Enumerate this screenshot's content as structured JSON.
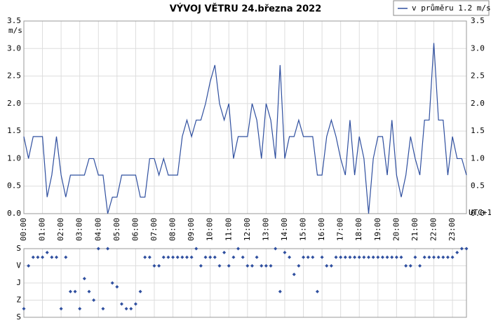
{
  "chart_data": [
    {
      "type": "line",
      "title": "VÝVOJ VĚTRU  24.března 2022",
      "y_unit": "m/s",
      "timezone": "UTC+1",
      "grid": true,
      "legend": "top-right",
      "x": [
        0,
        0.25,
        0.5,
        0.75,
        1,
        1.25,
        1.5,
        1.75,
        2,
        2.25,
        2.5,
        2.75,
        3,
        3.25,
        3.5,
        3.75,
        4,
        4.25,
        4.5,
        4.75,
        5,
        5.25,
        5.5,
        5.75,
        6,
        6.25,
        6.5,
        6.75,
        7,
        7.25,
        7.5,
        7.75,
        8,
        8.25,
        8.5,
        8.75,
        9,
        9.25,
        9.5,
        9.75,
        10,
        10.25,
        10.5,
        10.75,
        11,
        11.25,
        11.5,
        11.75,
        12,
        12.25,
        12.5,
        12.75,
        13,
        13.25,
        13.5,
        13.75,
        14,
        14.25,
        14.5,
        14.75,
        15,
        15.25,
        15.5,
        15.75,
        16,
        16.25,
        16.5,
        16.75,
        17,
        17.25,
        17.5,
        17.75,
        18,
        18.25,
        18.5,
        18.75,
        19,
        19.25,
        19.5,
        19.75,
        20,
        20.25,
        20.5,
        20.75,
        21,
        21.25,
        21.5,
        21.75,
        22,
        22.25,
        22.5,
        22.75,
        23,
        23.25,
        23.5,
        23.75
      ],
      "series": [
        {
          "name": "v průměru 1.2 m/s",
          "color": "#2f4f9f",
          "values": [
            1.4,
            1.0,
            1.4,
            1.4,
            1.4,
            0.3,
            0.7,
            1.4,
            0.7,
            0.3,
            0.7,
            0.7,
            0.7,
            0.7,
            1.0,
            1.0,
            0.7,
            0.7,
            0.0,
            0.3,
            0.3,
            0.7,
            0.7,
            0.7,
            0.7,
            0.3,
            0.3,
            1.0,
            1.0,
            0.7,
            1.0,
            0.7,
            0.7,
            0.7,
            1.4,
            1.7,
            1.4,
            1.7,
            1.7,
            2.0,
            2.4,
            2.7,
            2.0,
            1.7,
            2.0,
            1.0,
            1.4,
            1.4,
            1.4,
            2.0,
            1.7,
            1.0,
            2.0,
            1.7,
            1.0,
            2.7,
            1.0,
            1.4,
            1.4,
            1.7,
            1.4,
            1.4,
            1.4,
            0.7,
            0.7,
            1.4,
            1.7,
            1.4,
            1.0,
            0.7,
            1.7,
            0.7,
            1.4,
            1.0,
            0.0,
            1.0,
            1.4,
            1.4,
            0.7,
            1.7,
            0.7,
            0.3,
            0.7,
            1.4,
            1.0,
            0.7,
            1.7,
            1.7,
            3.1,
            1.7,
            1.7,
            0.7,
            1.4,
            1.0,
            1.0,
            0.7
          ]
        }
      ],
      "xlim": [
        0,
        23.75
      ],
      "xticks": [
        {
          "value": 0,
          "label": "00:00"
        },
        {
          "value": 1,
          "label": "01:00"
        },
        {
          "value": 2,
          "label": "02:00"
        },
        {
          "value": 3,
          "label": "03:00"
        },
        {
          "value": 4,
          "label": "04:00"
        },
        {
          "value": 5,
          "label": "05:00"
        },
        {
          "value": 6,
          "label": "06:00"
        },
        {
          "value": 7,
          "label": "07:00"
        },
        {
          "value": 8,
          "label": "08:00"
        },
        {
          "value": 9,
          "label": "09:00"
        },
        {
          "value": 10,
          "label": "10:00"
        },
        {
          "value": 11,
          "label": "11:00"
        },
        {
          "value": 12,
          "label": "12:00"
        },
        {
          "value": 13,
          "label": "13:00"
        },
        {
          "value": 14,
          "label": "14:00"
        },
        {
          "value": 15,
          "label": "15:00"
        },
        {
          "value": 16,
          "label": "16:00"
        },
        {
          "value": 17,
          "label": "17:00"
        },
        {
          "value": 18,
          "label": "18:00"
        },
        {
          "value": 19,
          "label": "19:00"
        },
        {
          "value": 20,
          "label": "20:00"
        },
        {
          "value": 21,
          "label": "21:00"
        },
        {
          "value": 22,
          "label": "22:00"
        },
        {
          "value": 23,
          "label": "23:00"
        }
      ],
      "ylim": [
        0,
        3.5
      ],
      "yticks": [
        {
          "value": 0,
          "label": "0.0"
        },
        0.5,
        {
          "value": 1,
          "label": "1.0"
        },
        1.5,
        {
          "value": 2,
          "label": "2.0"
        },
        2.5,
        {
          "value": 3,
          "label": "3.0"
        },
        3.5
      ]
    },
    {
      "type": "scatter",
      "color": "#2f4f9f",
      "grid": true,
      "x": [
        0,
        0.25,
        0.5,
        0.75,
        1,
        1.25,
        1.5,
        1.75,
        2,
        2.25,
        2.5,
        2.75,
        3,
        3.25,
        3.5,
        3.75,
        4,
        4.25,
        4.5,
        4.75,
        5,
        5.25,
        5.5,
        5.75,
        6,
        6.25,
        6.5,
        6.75,
        7,
        7.25,
        7.5,
        7.75,
        8,
        8.25,
        8.5,
        8.75,
        9,
        9.25,
        9.5,
        9.75,
        10,
        10.25,
        10.5,
        10.75,
        11,
        11.25,
        11.5,
        11.75,
        12,
        12.25,
        12.5,
        12.75,
        13,
        13.25,
        13.5,
        13.75,
        14,
        14.25,
        14.5,
        14.75,
        15,
        15.25,
        15.5,
        15.75,
        16,
        16.25,
        16.5,
        16.75,
        17,
        17.25,
        17.5,
        17.75,
        18,
        18.25,
        18.5,
        18.75,
        19,
        19.25,
        19.5,
        19.75,
        20,
        20.25,
        20.5,
        20.75,
        21,
        21.25,
        21.5,
        21.75,
        22,
        22.25,
        22.5,
        22.75,
        23,
        23.25,
        23.5,
        23.75
      ],
      "values": [
        315,
        90,
        45,
        45,
        45,
        20,
        45,
        45,
        315,
        45,
        225,
        225,
        315,
        157,
        225,
        270,
        0,
        315,
        0,
        180,
        200,
        290,
        315,
        315,
        290,
        225,
        45,
        45,
        90,
        90,
        45,
        45,
        45,
        45,
        45,
        45,
        45,
        0,
        90,
        45,
        45,
        45,
        90,
        20,
        90,
        45,
        0,
        45,
        90,
        90,
        45,
        90,
        90,
        90,
        0,
        225,
        20,
        45,
        135,
        90,
        45,
        45,
        45,
        225,
        45,
        90,
        90,
        45,
        45,
        45,
        45,
        45,
        45,
        45,
        45,
        45,
        45,
        45,
        45,
        45,
        45,
        45,
        90,
        90,
        45,
        90,
        45,
        45,
        45,
        45,
        45,
        45,
        45,
        20,
        0,
        0
      ],
      "xlim": [
        0,
        23.75
      ],
      "ylim": [
        360,
        0
      ],
      "yticks": [
        {
          "value": 0,
          "label": "S"
        },
        {
          "value": 90,
          "label": "V"
        },
        {
          "value": 180,
          "label": "J"
        },
        {
          "value": 270,
          "label": "Z"
        },
        {
          "value": 360,
          "label": "S"
        }
      ]
    }
  ]
}
